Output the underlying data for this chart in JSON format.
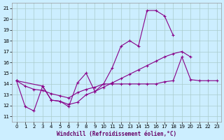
{
  "bg_color": "#cceeff",
  "grid_color": "#aacccc",
  "line_color": "#880088",
  "xlim": [
    -0.5,
    23.5
  ],
  "ylim": [
    10.5,
    21.5
  ],
  "yticks": [
    11,
    12,
    13,
    14,
    15,
    16,
    17,
    18,
    19,
    20,
    21
  ],
  "xticks": [
    0,
    1,
    2,
    3,
    4,
    5,
    6,
    7,
    8,
    9,
    10,
    11,
    12,
    13,
    14,
    15,
    16,
    17,
    18,
    19,
    20,
    21,
    22,
    23
  ],
  "xlabel": "Windchill (Refroidissement éolien,°C)",
  "series1_x": [
    0,
    1,
    2,
    3,
    4,
    5,
    6,
    7,
    8,
    9,
    10,
    11,
    12,
    13,
    14,
    15,
    16,
    17,
    18
  ],
  "series1_y": [
    14.3,
    11.9,
    11.5,
    13.8,
    12.5,
    12.4,
    11.9,
    14.1,
    15.0,
    13.3,
    14.0,
    15.5,
    17.5,
    18.0,
    17.5,
    20.8,
    20.8,
    20.3,
    18.5
  ],
  "series2_x": [
    0,
    1,
    2,
    3,
    4,
    5,
    6,
    7,
    8,
    9,
    10,
    11,
    12,
    13,
    14,
    15,
    16,
    17,
    18,
    19,
    20,
    21,
    22,
    23
  ],
  "series2_y": [
    14.3,
    13.8,
    13.5,
    13.4,
    13.1,
    12.9,
    12.7,
    13.2,
    13.5,
    13.7,
    14.0,
    14.0,
    14.0,
    14.0,
    14.0,
    14.0,
    14.0,
    14.2,
    14.3,
    16.5,
    14.4,
    14.3,
    14.3,
    14.3
  ],
  "series3_x": [
    0,
    3,
    4,
    5,
    6,
    7,
    8,
    9,
    10,
    11,
    12,
    13,
    14,
    15,
    16,
    17,
    18,
    19,
    20
  ],
  "series3_y": [
    14.3,
    13.8,
    12.5,
    12.4,
    12.1,
    12.3,
    13.0,
    13.3,
    13.7,
    14.1,
    14.5,
    14.9,
    15.3,
    15.7,
    16.1,
    16.5,
    16.8,
    17.0,
    16.5
  ]
}
